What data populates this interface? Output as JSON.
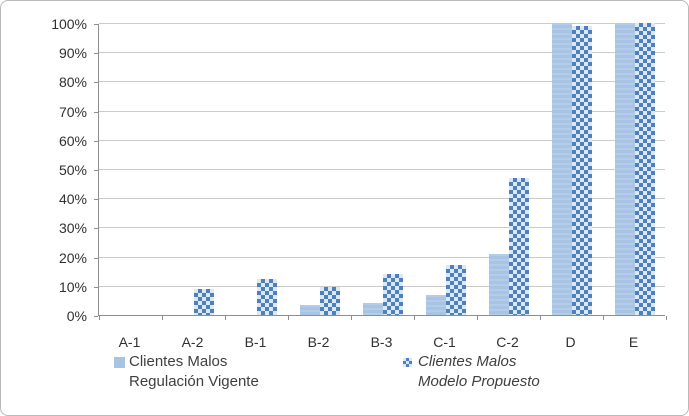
{
  "chart_data": {
    "type": "bar",
    "title": "",
    "xlabel": "",
    "ylabel": "",
    "categories": [
      "A-1",
      "A-2",
      "B-1",
      "B-2",
      "B-3",
      "C-1",
      "C-2",
      "D",
      "E"
    ],
    "series": [
      {
        "name": "Clientes Malos Regulación Vigente",
        "pattern": "solid",
        "values": [
          0,
          0,
          0,
          3.5,
          4,
          7,
          21,
          100,
          100
        ]
      },
      {
        "name": "Clientes Malos Modelo Propuesto",
        "pattern": "checker",
        "values": [
          0,
          9,
          12.5,
          9.5,
          14,
          17,
          47,
          99,
          100
        ]
      }
    ],
    "ylim": [
      0,
      100
    ],
    "y_tick_labels": [
      "0%",
      "10%",
      "20%",
      "30%",
      "40%",
      "50%",
      "60%",
      "70%",
      "80%",
      "90%",
      "100%"
    ],
    "grid": true,
    "legend_position": "bottom"
  },
  "legend": {
    "items": [
      {
        "line1": "Clientes Malos",
        "line2": "Regulación Vigente",
        "style": "normal",
        "swatch": "solid-light-blue"
      },
      {
        "line1": "Clientes Malos",
        "line2": "Modelo Propuesto",
        "style": "italic",
        "swatch": "checker-blue"
      }
    ]
  },
  "colors": {
    "bar_solid": "#a7c4e4",
    "bar_solid_band": "#b3cde9",
    "checker_dark": "#4e80bb",
    "checker_light": "#dce9f5",
    "gridline": "#cbcbcb",
    "axis": "#8e8e8e",
    "text": "#3f3f3f",
    "frame_border": "#b9b9b9"
  }
}
